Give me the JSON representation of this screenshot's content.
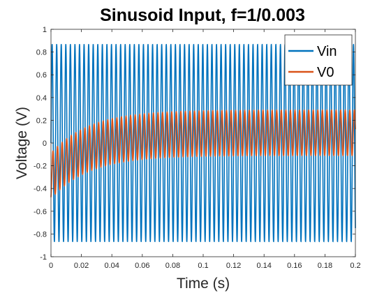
{
  "chart_data": {
    "type": "line",
    "title": "Sinusoid Input, f=1/0.003",
    "xlabel": "Time (s)",
    "ylabel": "Voltage (V)",
    "xlim": [
      0,
      0.2
    ],
    "ylim": [
      -1,
      1
    ],
    "xticks": [
      "0",
      "0.02",
      "0.04",
      "0.06",
      "0.08",
      "0.1",
      "0.12",
      "0.14",
      "0.16",
      "0.18",
      "0.2"
    ],
    "yticks": [
      "-1",
      "-0.8",
      "-0.6",
      "-0.4",
      "-0.2",
      "0",
      "0.2",
      "0.4",
      "0.6",
      "0.8",
      "1"
    ],
    "grid": false,
    "legend_position": "top-right",
    "series": [
      {
        "name": "Vin",
        "color": "#0072BD",
        "amplitude": 0.866,
        "frequency_hz": 333.33,
        "steady_offset": 0
      },
      {
        "name": "V0",
        "color": "#D95319",
        "steady_amplitude": 0.2,
        "steady_offset": 0.09,
        "initial_offset": -0.29,
        "time_constant_s": 0.025,
        "frequency_hz": 333.33
      }
    ]
  }
}
